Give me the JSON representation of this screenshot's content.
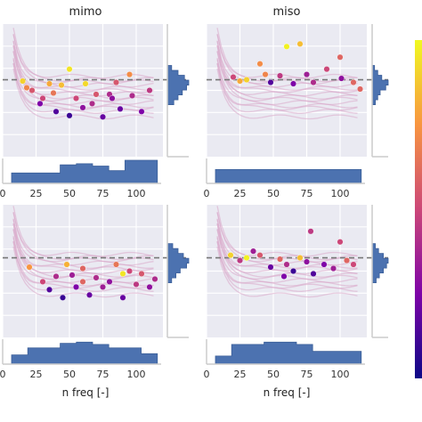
{
  "chart_data": [
    {
      "type": "scatter",
      "panel": "top-left",
      "title": "mimo",
      "xlabel": "",
      "xlim": [
        0,
        120
      ],
      "xticks": [
        0,
        25,
        50,
        75,
        100
      ],
      "ylim": [
        0,
        1
      ],
      "grid": true,
      "reference_line": 0.58,
      "color_bar": "plasma",
      "points": [
        {
          "x": 50,
          "y": 0.66,
          "c": 0.95
        },
        {
          "x": 62,
          "y": 0.55,
          "c": 0.92
        },
        {
          "x": 44,
          "y": 0.54,
          "c": 0.85
        },
        {
          "x": 35,
          "y": 0.55,
          "c": 0.8
        },
        {
          "x": 95,
          "y": 0.62,
          "c": 0.72
        },
        {
          "x": 85,
          "y": 0.56,
          "c": 0.55
        },
        {
          "x": 15,
          "y": 0.57,
          "c": 0.9
        },
        {
          "x": 38,
          "y": 0.48,
          "c": 0.65
        },
        {
          "x": 22,
          "y": 0.5,
          "c": 0.55
        },
        {
          "x": 30,
          "y": 0.44,
          "c": 0.5
        },
        {
          "x": 55,
          "y": 0.44,
          "c": 0.5
        },
        {
          "x": 70,
          "y": 0.47,
          "c": 0.55
        },
        {
          "x": 80,
          "y": 0.47,
          "c": 0.4
        },
        {
          "x": 97,
          "y": 0.46,
          "c": 0.4
        },
        {
          "x": 60,
          "y": 0.37,
          "c": 0.3
        },
        {
          "x": 40,
          "y": 0.34,
          "c": 0.15
        },
        {
          "x": 28,
          "y": 0.4,
          "c": 0.25
        },
        {
          "x": 88,
          "y": 0.36,
          "c": 0.2
        },
        {
          "x": 104,
          "y": 0.34,
          "c": 0.25
        },
        {
          "x": 82,
          "y": 0.44,
          "c": 0.3
        },
        {
          "x": 50,
          "y": 0.31,
          "c": 0.1
        },
        {
          "x": 75,
          "y": 0.3,
          "c": 0.2
        },
        {
          "x": 67,
          "y": 0.4,
          "c": 0.4
        },
        {
          "x": 18,
          "y": 0.52,
          "c": 0.7
        },
        {
          "x": 110,
          "y": 0.5,
          "c": 0.45
        }
      ]
    },
    {
      "type": "scatter",
      "panel": "top-right",
      "title": "miso",
      "xlabel": "",
      "xlim": [
        0,
        120
      ],
      "xticks": [
        0,
        25,
        50,
        75,
        100
      ],
      "ylim": [
        0,
        1
      ],
      "grid": true,
      "reference_line": 0.58,
      "color_bar": "plasma",
      "points": [
        {
          "x": 60,
          "y": 0.83,
          "c": 0.98
        },
        {
          "x": 70,
          "y": 0.85,
          "c": 0.85
        },
        {
          "x": 100,
          "y": 0.75,
          "c": 0.6
        },
        {
          "x": 40,
          "y": 0.7,
          "c": 0.72
        },
        {
          "x": 90,
          "y": 0.66,
          "c": 0.5
        },
        {
          "x": 75,
          "y": 0.62,
          "c": 0.35
        },
        {
          "x": 55,
          "y": 0.61,
          "c": 0.45
        },
        {
          "x": 101,
          "y": 0.59,
          "c": 0.3
        },
        {
          "x": 48,
          "y": 0.56,
          "c": 0.15
        },
        {
          "x": 65,
          "y": 0.55,
          "c": 0.25
        },
        {
          "x": 80,
          "y": 0.56,
          "c": 0.4
        },
        {
          "x": 20,
          "y": 0.6,
          "c": 0.5
        },
        {
          "x": 30,
          "y": 0.58,
          "c": 0.9
        },
        {
          "x": 110,
          "y": 0.56,
          "c": 0.6
        },
        {
          "x": 44,
          "y": 0.62,
          "c": 0.7
        },
        {
          "x": 25,
          "y": 0.57,
          "c": 0.8
        },
        {
          "x": 115,
          "y": 0.51,
          "c": 0.6
        }
      ]
    },
    {
      "type": "scatter",
      "panel": "bottom-left",
      "title": "",
      "xlabel": "n freq [-]",
      "xlim": [
        0,
        120
      ],
      "xticks": [
        0,
        25,
        50,
        75,
        100
      ],
      "ylim": [
        0,
        1
      ],
      "grid": true,
      "reference_line": 0.6,
      "color_bar": "plasma",
      "points": [
        {
          "x": 48,
          "y": 0.55,
          "c": 0.82
        },
        {
          "x": 60,
          "y": 0.52,
          "c": 0.6
        },
        {
          "x": 85,
          "y": 0.55,
          "c": 0.65
        },
        {
          "x": 95,
          "y": 0.5,
          "c": 0.5
        },
        {
          "x": 104,
          "y": 0.48,
          "c": 0.55
        },
        {
          "x": 40,
          "y": 0.46,
          "c": 0.4
        },
        {
          "x": 30,
          "y": 0.42,
          "c": 0.5
        },
        {
          "x": 70,
          "y": 0.45,
          "c": 0.4
        },
        {
          "x": 80,
          "y": 0.42,
          "c": 0.3
        },
        {
          "x": 55,
          "y": 0.38,
          "c": 0.25
        },
        {
          "x": 65,
          "y": 0.32,
          "c": 0.2
        },
        {
          "x": 45,
          "y": 0.3,
          "c": 0.1
        },
        {
          "x": 90,
          "y": 0.3,
          "c": 0.2
        },
        {
          "x": 75,
          "y": 0.38,
          "c": 0.35
        },
        {
          "x": 110,
          "y": 0.38,
          "c": 0.3
        },
        {
          "x": 35,
          "y": 0.36,
          "c": 0.15
        },
        {
          "x": 100,
          "y": 0.4,
          "c": 0.45
        },
        {
          "x": 20,
          "y": 0.53,
          "c": 0.75
        },
        {
          "x": 90,
          "y": 0.48,
          "c": 0.95
        },
        {
          "x": 60,
          "y": 0.42,
          "c": 0.6
        },
        {
          "x": 114,
          "y": 0.44,
          "c": 0.4
        },
        {
          "x": 52,
          "y": 0.47,
          "c": 0.35
        }
      ]
    },
    {
      "type": "scatter",
      "panel": "bottom-right",
      "title": "",
      "xlabel": "n freq [-]",
      "xlim": [
        0,
        120
      ],
      "xticks": [
        0,
        25,
        50,
        75,
        100
      ],
      "ylim": [
        0,
        1
      ],
      "grid": true,
      "reference_line": 0.6,
      "color_bar": "plasma",
      "points": [
        {
          "x": 78,
          "y": 0.8,
          "c": 0.45
        },
        {
          "x": 100,
          "y": 0.72,
          "c": 0.5
        },
        {
          "x": 35,
          "y": 0.65,
          "c": 0.35
        },
        {
          "x": 18,
          "y": 0.62,
          "c": 0.9
        },
        {
          "x": 40,
          "y": 0.62,
          "c": 0.55
        },
        {
          "x": 25,
          "y": 0.58,
          "c": 0.45
        },
        {
          "x": 55,
          "y": 0.59,
          "c": 0.6
        },
        {
          "x": 60,
          "y": 0.55,
          "c": 0.4
        },
        {
          "x": 75,
          "y": 0.57,
          "c": 0.3
        },
        {
          "x": 88,
          "y": 0.55,
          "c": 0.25
        },
        {
          "x": 105,
          "y": 0.58,
          "c": 0.6
        },
        {
          "x": 48,
          "y": 0.53,
          "c": 0.2
        },
        {
          "x": 65,
          "y": 0.5,
          "c": 0.1
        },
        {
          "x": 80,
          "y": 0.48,
          "c": 0.15
        },
        {
          "x": 95,
          "y": 0.52,
          "c": 0.35
        },
        {
          "x": 30,
          "y": 0.6,
          "c": 0.98
        },
        {
          "x": 70,
          "y": 0.6,
          "c": 0.85
        },
        {
          "x": 110,
          "y": 0.55,
          "c": 0.5
        },
        {
          "x": 58,
          "y": 0.46,
          "c": 0.25
        }
      ]
    }
  ],
  "colors": {
    "panel_bg": "#eaeaf2",
    "grid": "#ffffff",
    "hist": "#4c72b0",
    "line_tint": "#d9a5c8",
    "ref_line": "#777777"
  },
  "hist_x_bins": [
    [
      0.45,
      0.45,
      0.45,
      0.8,
      0.85,
      0.75,
      0.55,
      1.0,
      1.0
    ],
    [
      0.6,
      0.6,
      0.6,
      0.6,
      0.6,
      0.6,
      0.6,
      0.6,
      0.6
    ],
    [
      0.4,
      0.7,
      0.7,
      0.9,
      0.95,
      0.85,
      0.7,
      0.7,
      0.45
    ],
    [
      0.35,
      0.85,
      0.85,
      0.95,
      0.95,
      0.85,
      0.55,
      0.55,
      0.55
    ]
  ],
  "hist_y_bins": [
    [
      0.2,
      0.5,
      0.8,
      1.0,
      0.9,
      0.7,
      0.5,
      0.3
    ],
    [
      0.15,
      0.35,
      0.6,
      1.0,
      0.85,
      0.5,
      0.35,
      0.2
    ],
    [
      0.25,
      0.5,
      0.75,
      1.0,
      0.9,
      0.6,
      0.4,
      0.2
    ],
    [
      0.2,
      0.4,
      0.7,
      1.0,
      0.9,
      0.7,
      0.45,
      0.25
    ]
  ]
}
